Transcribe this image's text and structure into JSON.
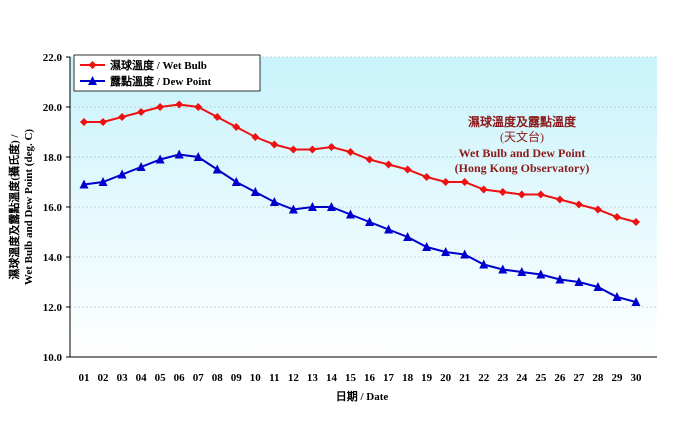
{
  "chart_data": {
    "type": "line",
    "title_lines": [
      "濕球溫度及露點溫度",
      "(天文台)",
      "Wet Bulb and Dew Point",
      "(Hong Kong Observatory)"
    ],
    "xlabel": "日期 / Date",
    "ylabel_lines": [
      "濕球溫度及露點溫度(攝氏度) /",
      "Wet Bulb and Dew Point (deg. C)"
    ],
    "ylim": [
      10,
      22
    ],
    "yticks": [
      "10.0",
      "12.0",
      "14.0",
      "16.0",
      "18.0",
      "20.0",
      "22.0"
    ],
    "grid": true,
    "legend_position": "top-left",
    "categories": [
      "01",
      "02",
      "03",
      "04",
      "05",
      "06",
      "07",
      "08",
      "09",
      "10",
      "11",
      "12",
      "13",
      "14",
      "15",
      "16",
      "17",
      "18",
      "19",
      "20",
      "21",
      "22",
      "23",
      "24",
      "25",
      "26",
      "27",
      "28",
      "29",
      "30"
    ],
    "series": [
      {
        "name": "濕球溫度 / Wet Bulb",
        "color": "#ee1111",
        "marker": "diamond",
        "values": [
          19.4,
          19.4,
          19.6,
          19.8,
          20.0,
          20.1,
          20.0,
          19.6,
          19.2,
          18.8,
          18.5,
          18.3,
          18.3,
          18.4,
          18.2,
          17.9,
          17.7,
          17.5,
          17.2,
          17.0,
          17.0,
          16.7,
          16.6,
          16.5,
          16.5,
          16.3,
          16.1,
          15.9,
          15.6,
          15.4
        ]
      },
      {
        "name": "露點溫度 / Dew Point",
        "color": "#0000cc",
        "marker": "triangle",
        "values": [
          16.9,
          17.0,
          17.3,
          17.6,
          17.9,
          18.1,
          18.0,
          17.5,
          17.0,
          16.6,
          16.2,
          15.9,
          16.0,
          16.0,
          15.7,
          15.4,
          15.1,
          14.8,
          14.4,
          14.2,
          14.1,
          13.7,
          13.5,
          13.4,
          13.3,
          13.1,
          13.0,
          12.8,
          12.4,
          12.2
        ]
      }
    ]
  }
}
